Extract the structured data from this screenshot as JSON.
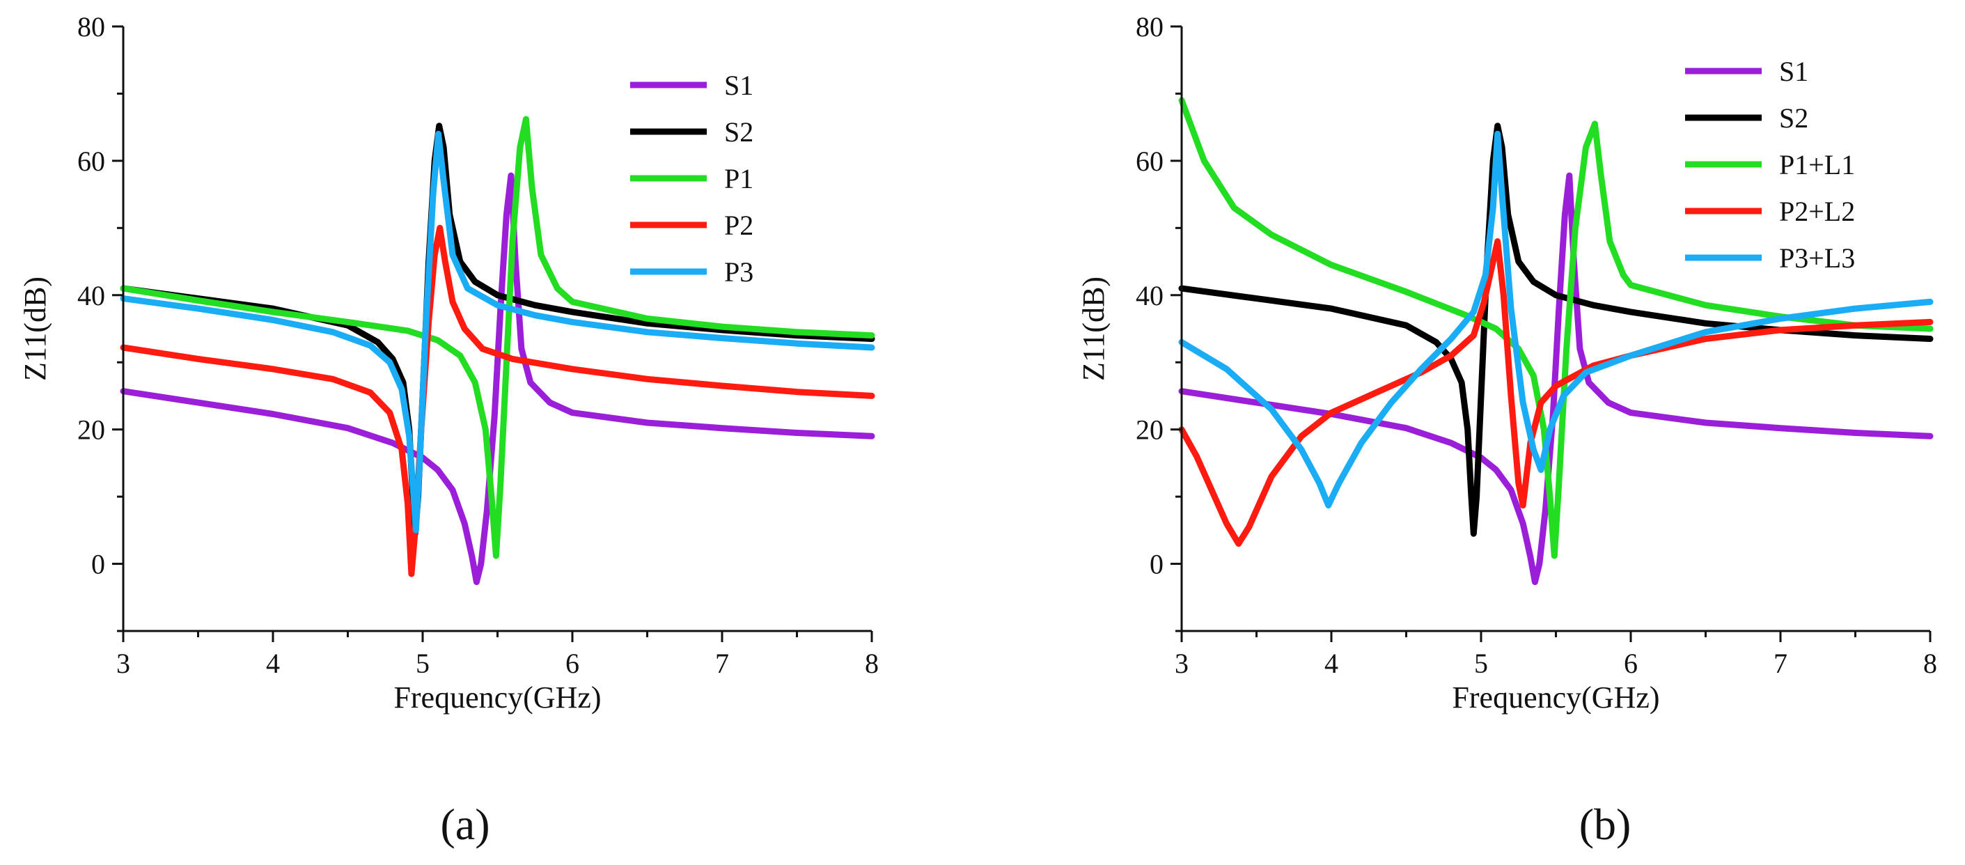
{
  "chart_data": [
    {
      "type": "line",
      "panel_label": "(a)",
      "xlabel": "Frequency(GHz)",
      "ylabel": "Z11(dB)",
      "xlim": [
        3,
        8
      ],
      "ylim": [
        -10,
        80
      ],
      "xticks": [
        3,
        4,
        5,
        6,
        7,
        8
      ],
      "yticks": [
        0,
        20,
        40,
        60,
        80
      ],
      "legend_position": "top-right",
      "grid": false,
      "series": [
        {
          "name": "S1",
          "color": "#9b1fd8",
          "points": [
            [
              3,
              25.7
            ],
            [
              3.5,
              24
            ],
            [
              4,
              22.3
            ],
            [
              4.5,
              20.2
            ],
            [
              4.8,
              18
            ],
            [
              5,
              15.8
            ],
            [
              5.1,
              14
            ],
            [
              5.2,
              11
            ],
            [
              5.28,
              6
            ],
            [
              5.33,
              1
            ],
            [
              5.36,
              -2.7
            ],
            [
              5.39,
              0
            ],
            [
              5.43,
              8
            ],
            [
              5.48,
              22
            ],
            [
              5.52,
              38
            ],
            [
              5.56,
              52
            ],
            [
              5.59,
              57.8
            ],
            [
              5.62,
              45
            ],
            [
              5.66,
              32
            ],
            [
              5.72,
              27
            ],
            [
              5.85,
              24
            ],
            [
              6,
              22.5
            ],
            [
              6.5,
              21
            ],
            [
              7,
              20.2
            ],
            [
              7.5,
              19.5
            ],
            [
              8,
              19
            ]
          ]
        },
        {
          "name": "S2",
          "color": "#000000",
          "points": [
            [
              3,
              41
            ],
            [
              3.5,
              39.5
            ],
            [
              4,
              38
            ],
            [
              4.5,
              35.5
            ],
            [
              4.7,
              33
            ],
            [
              4.8,
              30.5
            ],
            [
              4.87,
              27
            ],
            [
              4.91,
              20
            ],
            [
              4.935,
              10
            ],
            [
              4.95,
              4.5
            ],
            [
              4.97,
              10
            ],
            [
              5,
              25
            ],
            [
              5.04,
              45
            ],
            [
              5.08,
              60
            ],
            [
              5.11,
              65.2
            ],
            [
              5.14,
              62
            ],
            [
              5.18,
              52
            ],
            [
              5.25,
              45
            ],
            [
              5.35,
              42
            ],
            [
              5.5,
              40
            ],
            [
              5.75,
              38.5
            ],
            [
              6,
              37.5
            ],
            [
              6.5,
              35.8
            ],
            [
              7,
              34.8
            ],
            [
              7.5,
              34
            ],
            [
              8,
              33.5
            ]
          ]
        },
        {
          "name": "P1",
          "color": "#22dd22",
          "points": [
            [
              3,
              41
            ],
            [
              3.5,
              39.2
            ],
            [
              4,
              37.5
            ],
            [
              4.5,
              36
            ],
            [
              4.9,
              34.7
            ],
            [
              5.1,
              33.3
            ],
            [
              5.25,
              31
            ],
            [
              5.35,
              27
            ],
            [
              5.42,
              20
            ],
            [
              5.46,
              10
            ],
            [
              5.49,
              1.2
            ],
            [
              5.52,
              12
            ],
            [
              5.56,
              30
            ],
            [
              5.6,
              48
            ],
            [
              5.65,
              62
            ],
            [
              5.69,
              66.2
            ],
            [
              5.73,
              56
            ],
            [
              5.79,
              46
            ],
            [
              5.9,
              41
            ],
            [
              6,
              39
            ],
            [
              6.5,
              36.5
            ],
            [
              7,
              35.3
            ],
            [
              7.5,
              34.5
            ],
            [
              8,
              34
            ]
          ]
        },
        {
          "name": "P2",
          "color": "#ff1b10",
          "points": [
            [
              3,
              32.2
            ],
            [
              3.5,
              30.5
            ],
            [
              4,
              29
            ],
            [
              4.4,
              27.5
            ],
            [
              4.65,
              25.5
            ],
            [
              4.78,
              22.5
            ],
            [
              4.86,
              17
            ],
            [
              4.9,
              9
            ],
            [
              4.925,
              -1.5
            ],
            [
              4.95,
              5
            ],
            [
              4.99,
              20
            ],
            [
              5.04,
              36
            ],
            [
              5.08,
              46
            ],
            [
              5.115,
              50
            ],
            [
              5.15,
              45
            ],
            [
              5.2,
              39
            ],
            [
              5.28,
              35
            ],
            [
              5.4,
              32
            ],
            [
              5.6,
              30.5
            ],
            [
              6,
              29
            ],
            [
              6.5,
              27.5
            ],
            [
              7,
              26.5
            ],
            [
              7.5,
              25.6
            ],
            [
              8,
              25
            ]
          ]
        },
        {
          "name": "P3",
          "color": "#1aacf5",
          "points": [
            [
              3,
              39.5
            ],
            [
              3.5,
              38
            ],
            [
              4,
              36.3
            ],
            [
              4.4,
              34.5
            ],
            [
              4.65,
              32.5
            ],
            [
              4.78,
              30
            ],
            [
              4.86,
              26
            ],
            [
              4.91,
              19
            ],
            [
              4.94,
              10
            ],
            [
              4.955,
              5
            ],
            [
              4.98,
              15
            ],
            [
              5.02,
              35
            ],
            [
              5.07,
              55
            ],
            [
              5.105,
              64
            ],
            [
              5.14,
              57
            ],
            [
              5.2,
              46
            ],
            [
              5.3,
              41
            ],
            [
              5.5,
              38.5
            ],
            [
              5.75,
              37
            ],
            [
              6,
              36
            ],
            [
              6.5,
              34.5
            ],
            [
              7,
              33.6
            ],
            [
              7.5,
              32.8
            ],
            [
              8,
              32.2
            ]
          ]
        }
      ]
    },
    {
      "type": "line",
      "panel_label": "(b)",
      "xlabel": "Frequency(GHz)",
      "ylabel": "Z11(dB)",
      "xlim": [
        3,
        8
      ],
      "ylim": [
        -10,
        80
      ],
      "xticks": [
        3,
        4,
        5,
        6,
        7,
        8
      ],
      "yticks": [
        0,
        20,
        40,
        60,
        80
      ],
      "legend_position": "top-right",
      "grid": false,
      "series": [
        {
          "name": "S1",
          "color": "#9b1fd8",
          "points": [
            [
              3,
              25.7
            ],
            [
              3.5,
              24
            ],
            [
              4,
              22.3
            ],
            [
              4.5,
              20.2
            ],
            [
              4.8,
              18
            ],
            [
              5,
              15.8
            ],
            [
              5.1,
              14
            ],
            [
              5.2,
              11
            ],
            [
              5.28,
              6
            ],
            [
              5.33,
              1
            ],
            [
              5.36,
              -2.7
            ],
            [
              5.39,
              0
            ],
            [
              5.43,
              8
            ],
            [
              5.48,
              22
            ],
            [
              5.52,
              38
            ],
            [
              5.56,
              52
            ],
            [
              5.59,
              57.8
            ],
            [
              5.62,
              45
            ],
            [
              5.66,
              32
            ],
            [
              5.72,
              27
            ],
            [
              5.85,
              24
            ],
            [
              6,
              22.5
            ],
            [
              6.5,
              21
            ],
            [
              7,
              20.2
            ],
            [
              7.5,
              19.5
            ],
            [
              8,
              19
            ]
          ]
        },
        {
          "name": "S2",
          "color": "#000000",
          "points": [
            [
              3,
              41
            ],
            [
              3.5,
              39.5
            ],
            [
              4,
              38
            ],
            [
              4.5,
              35.5
            ],
            [
              4.7,
              33
            ],
            [
              4.8,
              30.5
            ],
            [
              4.87,
              27
            ],
            [
              4.91,
              20
            ],
            [
              4.935,
              10
            ],
            [
              4.95,
              4.5
            ],
            [
              4.97,
              10
            ],
            [
              5,
              25
            ],
            [
              5.04,
              45
            ],
            [
              5.08,
              60
            ],
            [
              5.11,
              65.2
            ],
            [
              5.14,
              62
            ],
            [
              5.18,
              52
            ],
            [
              5.25,
              45
            ],
            [
              5.35,
              42
            ],
            [
              5.5,
              40
            ],
            [
              5.75,
              38.5
            ],
            [
              6,
              37.5
            ],
            [
              6.5,
              35.8
            ],
            [
              7,
              34.8
            ],
            [
              7.5,
              34
            ],
            [
              8,
              33.5
            ]
          ]
        },
        {
          "name": "P1+L1",
          "color": "#22dd22",
          "points": [
            [
              3,
              69
            ],
            [
              3.15,
              60
            ],
            [
              3.35,
              53
            ],
            [
              3.6,
              49
            ],
            [
              4,
              44.5
            ],
            [
              4.5,
              40.5
            ],
            [
              4.9,
              37
            ],
            [
              5.1,
              35
            ],
            [
              5.25,
              32
            ],
            [
              5.35,
              28
            ],
            [
              5.42,
              20
            ],
            [
              5.46,
              10
            ],
            [
              5.49,
              1.2
            ],
            [
              5.52,
              12
            ],
            [
              5.57,
              32
            ],
            [
              5.63,
              50
            ],
            [
              5.7,
              62
            ],
            [
              5.76,
              65.5
            ],
            [
              5.8,
              58
            ],
            [
              5.86,
              48
            ],
            [
              5.95,
              43
            ],
            [
              6,
              41.5
            ],
            [
              6.5,
              38.5
            ],
            [
              7,
              36.8
            ],
            [
              7.5,
              35.5
            ],
            [
              8,
              35
            ]
          ]
        },
        {
          "name": "P2+L2",
          "color": "#ff1b10",
          "points": [
            [
              3,
              20
            ],
            [
              3.1,
              16
            ],
            [
              3.2,
              11
            ],
            [
              3.3,
              6
            ],
            [
              3.38,
              3
            ],
            [
              3.45,
              5.5
            ],
            [
              3.6,
              13
            ],
            [
              3.8,
              19
            ],
            [
              4,
              22.5
            ],
            [
              4.3,
              25.5
            ],
            [
              4.6,
              28.5
            ],
            [
              4.8,
              31
            ],
            [
              4.95,
              34
            ],
            [
              5.02,
              39
            ],
            [
              5.07,
              44
            ],
            [
              5.11,
              48
            ],
            [
              5.15,
              40
            ],
            [
              5.2,
              25
            ],
            [
              5.25,
              12
            ],
            [
              5.28,
              8.7
            ],
            [
              5.33,
              18
            ],
            [
              5.4,
              24
            ],
            [
              5.5,
              26.5
            ],
            [
              5.75,
              29.5
            ],
            [
              6,
              31
            ],
            [
              6.5,
              33.5
            ],
            [
              7,
              34.8
            ],
            [
              7.5,
              35.5
            ],
            [
              8,
              36
            ]
          ]
        },
        {
          "name": "P3+L3",
          "color": "#1aacf5",
          "points": [
            [
              3,
              33
            ],
            [
              3.3,
              29
            ],
            [
              3.6,
              23
            ],
            [
              3.8,
              17
            ],
            [
              3.92,
              12
            ],
            [
              3.98,
              8.7
            ],
            [
              4.05,
              12
            ],
            [
              4.2,
              18
            ],
            [
              4.4,
              24
            ],
            [
              4.6,
              29
            ],
            [
              4.8,
              33.5
            ],
            [
              4.95,
              37.5
            ],
            [
              5.03,
              43
            ],
            [
              5.08,
              53
            ],
            [
              5.11,
              64
            ],
            [
              5.14,
              55
            ],
            [
              5.2,
              38
            ],
            [
              5.28,
              24
            ],
            [
              5.35,
              17
            ],
            [
              5.4,
              14
            ],
            [
              5.46,
              20
            ],
            [
              5.55,
              25
            ],
            [
              5.7,
              28.5
            ],
            [
              6,
              31
            ],
            [
              6.5,
              34.5
            ],
            [
              7,
              36.5
            ],
            [
              7.5,
              38
            ],
            [
              8,
              39
            ]
          ]
        }
      ]
    }
  ]
}
